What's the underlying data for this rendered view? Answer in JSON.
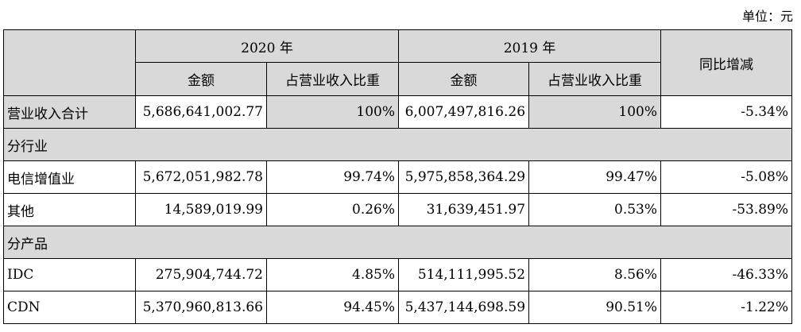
{
  "unit_label": "单位：元",
  "header": {
    "year_2020": "2020 年",
    "year_2019": "2019 年",
    "yoy": "同比增减",
    "amount": "金额",
    "share": "占营业收入比重"
  },
  "rows": [
    {
      "label": "营业收入合计",
      "a2020": "5,686,641,002.77",
      "s2020": "100%",
      "a2019": "6,007,497,816.26",
      "s2019": "100%",
      "yoy": "-5.34%"
    },
    {
      "section": "分行业"
    },
    {
      "label": "电信增值业",
      "a2020": "5,672,051,982.78",
      "s2020": "99.74%",
      "a2019": "5,975,858,364.29",
      "s2019": "99.47%",
      "yoy": "-5.08%"
    },
    {
      "label": "其他",
      "a2020": "14,589,019.99",
      "s2020": "0.26%",
      "a2019": "31,639,451.97",
      "s2019": "0.53%",
      "yoy": "-53.89%"
    },
    {
      "section": "分产品"
    },
    {
      "label": "IDC",
      "a2020": "275,904,744.72",
      "s2020": "4.85%",
      "a2019": "514,111,995.52",
      "s2019": "8.56%",
      "yoy": "-46.33%"
    },
    {
      "label": "CDN",
      "a2020": "5,370,960,813.66",
      "s2020": "94.45%",
      "a2019": "5,437,144,698.59",
      "s2019": "90.51%",
      "yoy": "-1.22%"
    }
  ]
}
